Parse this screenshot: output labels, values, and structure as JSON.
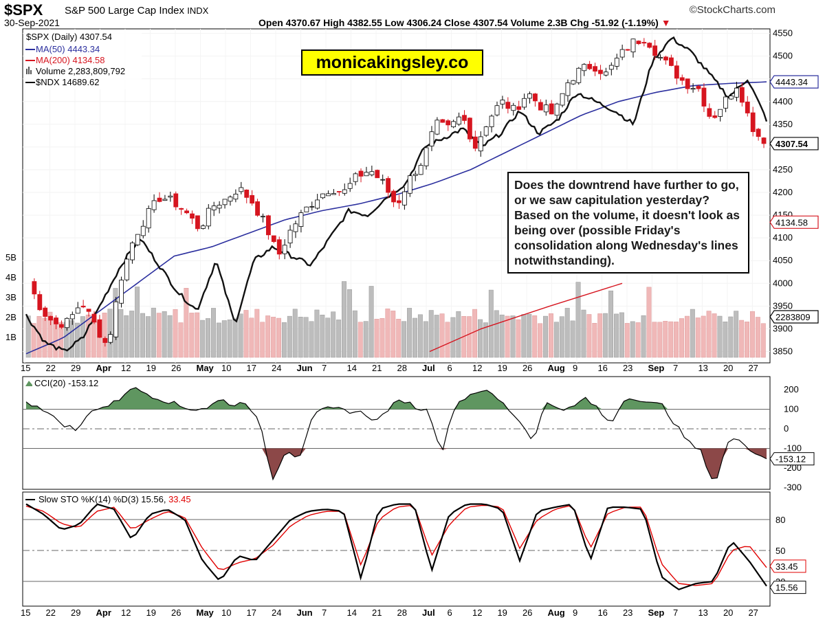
{
  "header": {
    "symbol": "$SPX",
    "name": "S&P 500 Large Cap Index",
    "exchange": "INDX",
    "date": "30-Sep-2021",
    "source": "©StockCharts.com",
    "ohlc": "Open 4370.67  High 4382.55  Low 4306.24  Close 4307.54  Volume 2.3B  Chg -51.92 (-1.19%)",
    "ohlc_arrow": "▼"
  },
  "watermark": "monicakingsley.co",
  "note": "Does the downtrend have further to go, or we saw capitulation yesterday? Based on the volume, it doesn't look as being over (possible Friday's consolidation along Wednesday's lines notwithstanding).",
  "legend": {
    "price": "$SPX (Daily) 4307.54",
    "ma50": "MA(50) 4443.34",
    "ma200": "MA(200) 4134.58",
    "volume": "Volume 2,283,809,792",
    "ndx": "$NDX 14689.62",
    "cci": "CCI(20) -153.12",
    "sto_main": "Slow STO %K(14) %D(3) 15.56,",
    "sto_d": "33.45"
  },
  "colors": {
    "up": "#ffffff",
    "down": "#d6151f",
    "ma50": "#2b2f9e",
    "ma200": "#d6151f",
    "volume_up": "#bdbdbd",
    "volume_down": "#f0b8b8",
    "cci_pos": "#5f9660",
    "cci_neg": "#8c4848",
    "sto_d": "#e00000"
  },
  "chart_data": {
    "type": "candlestick",
    "price_ylim": [
      3825,
      4560
    ],
    "price_ticks": [
      "4550",
      "4500",
      "4450",
      "4400",
      "4350",
      "4300",
      "4250",
      "4200",
      "4150",
      "4100",
      "4050",
      "4000",
      "3950",
      "3900",
      "3850"
    ],
    "volume_ticks": [
      "5B",
      "4B",
      "3B",
      "2B",
      "1B"
    ],
    "price_tags": {
      "ma50": "4443.34",
      "close": "4307.54",
      "ma200": "4134.58",
      "volume": "2283809"
    },
    "x_labels": [
      "15",
      "22",
      "29",
      "Apr",
      "12",
      "19",
      "26",
      "May",
      "10",
      "17",
      "24",
      "Jun",
      "7",
      "14",
      "21",
      "28",
      "Jul",
      "6",
      "12",
      "19",
      "26",
      "Aug",
      "9",
      "16",
      "23",
      "Sep",
      "7",
      "13",
      "20",
      "27"
    ],
    "x_label_bold": [
      "Apr",
      "May",
      "Jun",
      "Jul",
      "Aug",
      "Sep"
    ],
    "cci_ticks": [
      "200",
      "100",
      "0",
      "-100",
      "-200",
      "-300"
    ],
    "cci_tag": "-153.12",
    "sto_ticks": [
      "80",
      "50",
      "20"
    ],
    "sto_tags": {
      "d": "33.45",
      "k": "15.56"
    },
    "price_close_anchors": [
      4000,
      3940,
      3910,
      3915,
      3960,
      3910,
      3860,
      4010,
      4100,
      4150,
      4190,
      4180,
      4155,
      4120,
      4170,
      4185,
      4210,
      4180,
      4130,
      4060,
      4120,
      4160,
      4190,
      4210,
      4200,
      4235,
      4250,
      4220,
      4170,
      4230,
      4270,
      4350,
      4340,
      4370,
      4300,
      4360,
      4400,
      4380,
      4420,
      4390,
      4370,
      4440,
      4470,
      4480,
      4460,
      4500,
      4530,
      4540,
      4500,
      4470,
      4440,
      4430,
      4360,
      4400,
      4440,
      4350,
      4307.54
    ],
    "ndx_anchors": [
      3930,
      3870,
      3850,
      3880,
      3960,
      4040,
      4100,
      4040,
      3980,
      3940,
      4050,
      3910,
      4050,
      4080,
      4060,
      4040,
      4100,
      4160,
      4150,
      4190,
      4220,
      4300,
      4320,
      4340,
      4300,
      4330,
      4380,
      4330,
      4360,
      4420,
      4400,
      4380,
      4350,
      4490,
      4540,
      4510,
      4460,
      4410,
      4450,
      4360
    ],
    "ma50_anchors": [
      3845,
      3880,
      3940,
      4000,
      4060,
      4080,
      4110,
      4140,
      4160,
      4175,
      4195,
      4220,
      4250,
      4290,
      4330,
      4370,
      4400,
      4420,
      4435,
      4440,
      4443.34
    ],
    "ma200_anchors": [
      3850,
      3900,
      3950,
      4000
    ],
    "volume_billions_avg": 2.1,
    "cci_values": [
      130,
      120,
      60,
      20,
      -10,
      100,
      110,
      140,
      210,
      190,
      160,
      140,
      110,
      100,
      110,
      150,
      120,
      140,
      20,
      -260,
      -100,
      -150,
      60,
      100,
      100,
      90,
      80,
      40,
      110,
      150,
      110,
      90,
      -120,
      120,
      170,
      200,
      170,
      110,
      40,
      -60,
      130,
      110,
      100,
      160,
      100,
      20,
      150,
      160,
      130,
      120,
      20,
      -70,
      -120,
      -290,
      -70,
      -50,
      -120,
      -153.12
    ],
    "sto_k_values": [
      95,
      85,
      70,
      75,
      95,
      90,
      60,
      85,
      90,
      80,
      40,
      20,
      45,
      40,
      60,
      80,
      88,
      90,
      88,
      22,
      90,
      95,
      95,
      30,
      85,
      95,
      95,
      90,
      40,
      88,
      92,
      95,
      40,
      92,
      92,
      90,
      25,
      12,
      18,
      20,
      60,
      40,
      15.56
    ],
    "sto_d_values": [
      93,
      88,
      76,
      72,
      88,
      92,
      70,
      80,
      88,
      82,
      52,
      30,
      38,
      42,
      55,
      74,
      84,
      88,
      88,
      35,
      80,
      92,
      94,
      45,
      75,
      92,
      94,
      92,
      52,
      80,
      90,
      94,
      52,
      86,
      92,
      92,
      38,
      18,
      16,
      18,
      50,
      55,
      33.45
    ]
  }
}
